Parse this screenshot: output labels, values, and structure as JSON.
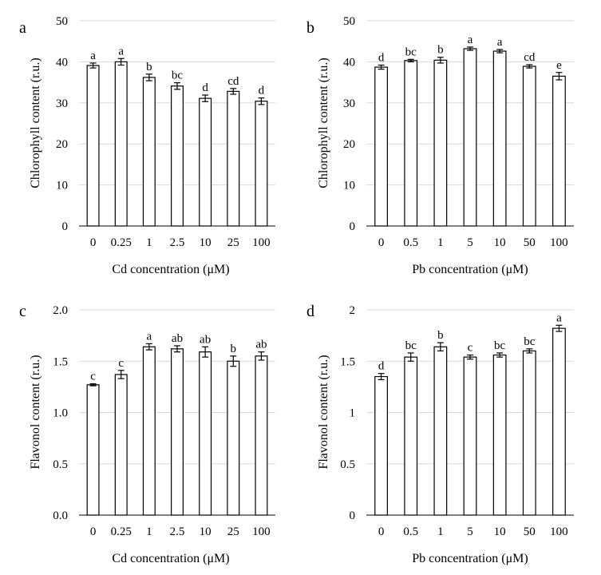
{
  "chart_data": [
    {
      "panel": "a",
      "type": "bar",
      "xlabel": "Cd concentration (μM)",
      "ylabel": "Chlorophyll content (r.u.)",
      "ylim": [
        0,
        50
      ],
      "yticks": [
        "0",
        "10",
        "20",
        "30",
        "40",
        "50"
      ],
      "categories": [
        "0",
        "0.25",
        "1",
        "2.5",
        "10",
        "25",
        "100"
      ],
      "values": [
        39.1,
        40.0,
        36.2,
        34.1,
        31.1,
        32.8,
        30.4
      ],
      "errors": [
        0.6,
        0.8,
        0.8,
        0.8,
        0.8,
        0.7,
        0.8
      ],
      "labels": [
        "a",
        "a",
        "b",
        "bc",
        "d",
        "cd",
        "d"
      ],
      "grid": true
    },
    {
      "panel": "b",
      "type": "bar",
      "xlabel": "Pb concentration (μM)",
      "ylabel": "Chlorophyll content (r.u.)",
      "ylim": [
        0,
        50
      ],
      "yticks": [
        "0",
        "10",
        "20",
        "30",
        "40",
        "50"
      ],
      "categories": [
        "0",
        "0.5",
        "1",
        "5",
        "10",
        "50",
        "100"
      ],
      "values": [
        38.7,
        40.3,
        40.4,
        43.2,
        42.6,
        38.9,
        36.5
      ],
      "errors": [
        0.5,
        0.3,
        0.7,
        0.4,
        0.4,
        0.4,
        0.9
      ],
      "labels": [
        "d",
        "bc",
        "b",
        "a",
        "a",
        "cd",
        "e"
      ],
      "grid": true
    },
    {
      "panel": "c",
      "type": "bar",
      "xlabel": "Cd concentration (μM)",
      "ylabel": "Flavonol content (r.u.)",
      "ylim": [
        0,
        2.0
      ],
      "yticks": [
        "0.0",
        "0.5",
        "1.0",
        "1.5",
        "2.0"
      ],
      "categories": [
        "0",
        "0.25",
        "1",
        "2.5",
        "10",
        "25",
        "100"
      ],
      "values": [
        1.27,
        1.37,
        1.64,
        1.62,
        1.59,
        1.5,
        1.55
      ],
      "errors": [
        0.01,
        0.04,
        0.03,
        0.03,
        0.05,
        0.05,
        0.04
      ],
      "labels": [
        "c",
        "c",
        "a",
        "ab",
        "ab",
        "b",
        "ab"
      ],
      "grid": true
    },
    {
      "panel": "d",
      "type": "bar",
      "xlabel": "Pb concentration (μM)",
      "ylabel": "Flavonol content (r.u.)",
      "ylim": [
        0,
        2
      ],
      "yticks": [
        "0",
        "0.5",
        "1",
        "1.5",
        "2"
      ],
      "categories": [
        "0",
        "0.5",
        "1",
        "5",
        "10",
        "50",
        "100"
      ],
      "values": [
        1.35,
        1.54,
        1.64,
        1.54,
        1.56,
        1.6,
        1.82
      ],
      "errors": [
        0.03,
        0.04,
        0.04,
        0.02,
        0.02,
        0.02,
        0.03
      ],
      "labels": [
        "d",
        "bc",
        "b",
        "c",
        "bc",
        "bc",
        "a"
      ],
      "grid": true
    }
  ]
}
